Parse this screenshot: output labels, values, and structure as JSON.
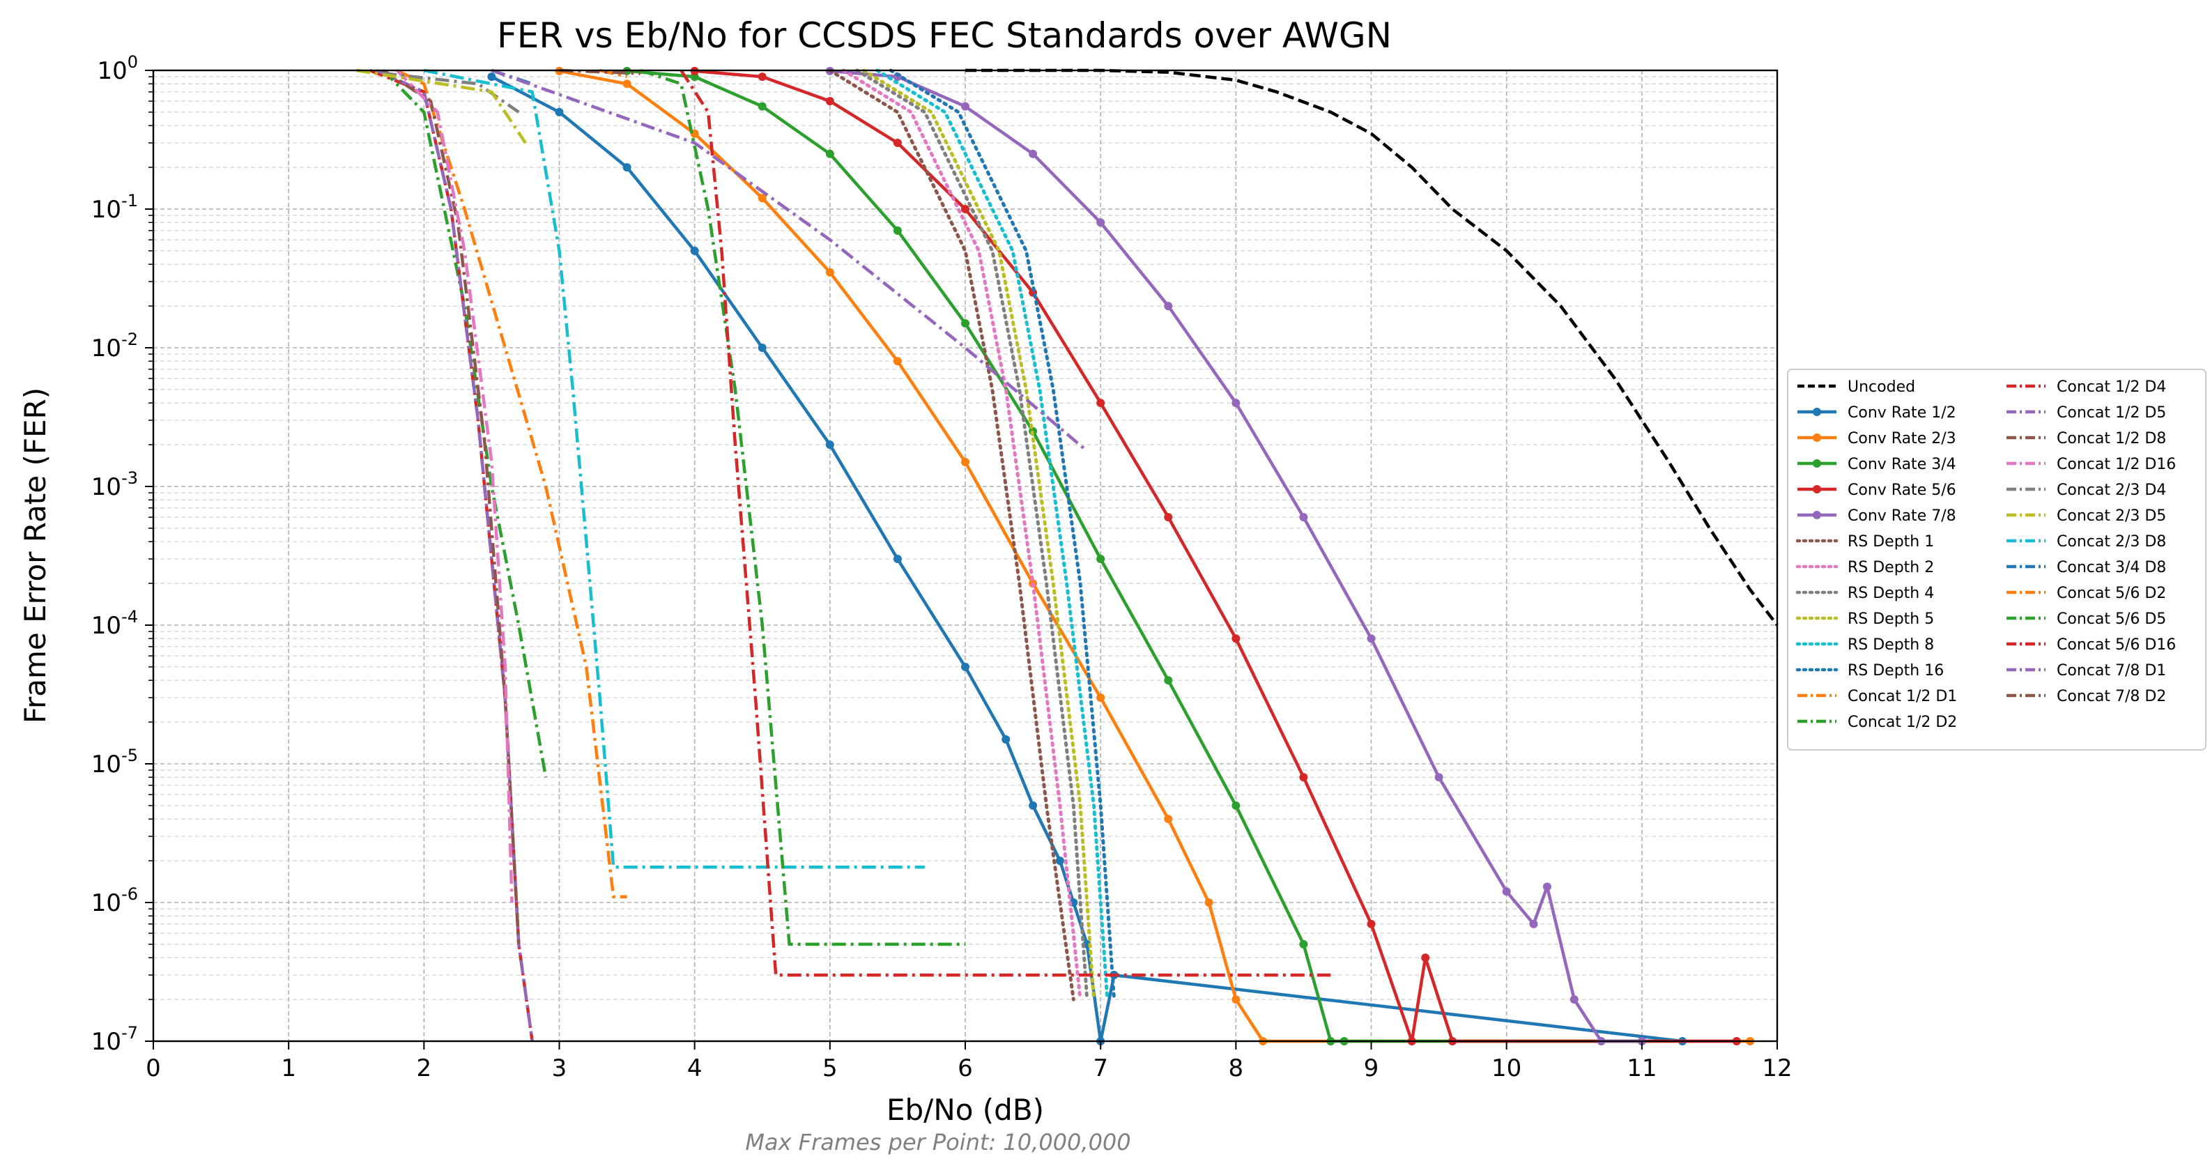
{
  "chart_data": {
    "type": "line",
    "title": "FER vs Eb/No for CCSDS FEC Standards over AWGN",
    "xlabel": "Eb/No (dB)",
    "ylabel": "Frame Error Rate (FER)",
    "footnote": "Max Frames per Point: 10,000,000",
    "xlim": [
      0,
      12
    ],
    "ylim": [
      1e-07,
      1
    ],
    "yscale": "log",
    "grid": true,
    "legend_position": "right-outside",
    "x_ticks": [
      "0",
      "1",
      "2",
      "3",
      "4",
      "5",
      "6",
      "7",
      "8",
      "9",
      "10",
      "11",
      "12"
    ],
    "y_ticks": [
      {
        "base": "10",
        "exp": "-7",
        "value": 1e-07
      },
      {
        "base": "10",
        "exp": "-6",
        "value": 1e-06
      },
      {
        "base": "10",
        "exp": "-5",
        "value": 1e-05
      },
      {
        "base": "10",
        "exp": "-4",
        "value": 0.0001
      },
      {
        "base": "10",
        "exp": "-3",
        "value": 0.001
      },
      {
        "base": "10",
        "exp": "-2",
        "value": 0.01
      },
      {
        "base": "10",
        "exp": "-1",
        "value": 0.1
      },
      {
        "base": "10",
        "exp": "0",
        "value": 1
      }
    ],
    "series": [
      {
        "name": "Uncoded",
        "color": "#000000",
        "style": "dashed",
        "marker": false,
        "x": [
          6.0,
          7.0,
          7.5,
          8.0,
          8.3,
          8.7,
          9.0,
          9.3,
          9.6,
          10.0,
          10.4,
          10.8,
          11.2,
          11.5,
          11.8,
          12.0
        ],
        "y": [
          1,
          1,
          0.97,
          0.85,
          0.7,
          0.5,
          0.35,
          0.2,
          0.1,
          0.05,
          0.02,
          0.006,
          0.0015,
          0.0005,
          0.00018,
          0.0001
        ]
      },
      {
        "name": "Conv Rate 1/2",
        "color": "#1f77b4",
        "style": "solid",
        "marker": true,
        "x": [
          2.5,
          3.0,
          3.5,
          4.0,
          4.5,
          5.0,
          5.5,
          6.0,
          6.3,
          6.5,
          6.7,
          6.8,
          6.9,
          7.0,
          7.1,
          11.3
        ],
        "y": [
          0.9,
          0.5,
          0.2,
          0.05,
          0.01,
          0.002,
          0.0003,
          5e-05,
          1.5e-05,
          5e-06,
          2e-06,
          1e-06,
          5e-07,
          1e-07,
          3e-07,
          1e-07
        ]
      },
      {
        "name": "Conv Rate 2/3",
        "color": "#ff7f0e",
        "style": "solid",
        "marker": true,
        "x": [
          3.0,
          3.5,
          4.0,
          4.5,
          5.0,
          5.5,
          6.0,
          6.5,
          7.0,
          7.5,
          7.8,
          8.0,
          8.2,
          11.8
        ],
        "y": [
          0.99,
          0.8,
          0.35,
          0.12,
          0.035,
          0.008,
          0.0015,
          0.0002,
          3e-05,
          4e-06,
          1e-06,
          2e-07,
          1e-07,
          1e-07
        ]
      },
      {
        "name": "Conv Rate 3/4",
        "color": "#2ca02c",
        "style": "solid",
        "marker": true,
        "x": [
          3.5,
          4.0,
          4.5,
          5.0,
          5.5,
          6.0,
          6.5,
          7.0,
          7.5,
          8.0,
          8.5,
          8.7,
          8.8,
          11.0
        ],
        "y": [
          0.99,
          0.9,
          0.55,
          0.25,
          0.07,
          0.015,
          0.0025,
          0.0003,
          4e-05,
          5e-06,
          5e-07,
          1e-07,
          1e-07,
          1e-07
        ]
      },
      {
        "name": "Conv Rate 5/6",
        "color": "#d62728",
        "style": "solid",
        "marker": true,
        "x": [
          4.0,
          4.5,
          5.0,
          5.5,
          6.0,
          6.5,
          7.0,
          7.5,
          8.0,
          8.5,
          9.0,
          9.3,
          9.4,
          9.6,
          11.7
        ],
        "y": [
          0.99,
          0.9,
          0.6,
          0.3,
          0.1,
          0.025,
          0.004,
          0.0006,
          8e-05,
          8e-06,
          7e-07,
          1e-07,
          4e-07,
          1e-07,
          1e-07
        ]
      },
      {
        "name": "Conv Rate 7/8",
        "color": "#9467bd",
        "style": "solid",
        "marker": true,
        "x": [
          5.0,
          5.5,
          6.0,
          6.5,
          7.0,
          7.5,
          8.0,
          8.5,
          9.0,
          9.5,
          10.0,
          10.2,
          10.3,
          10.5,
          10.7,
          11.0
        ],
        "y": [
          0.99,
          0.9,
          0.55,
          0.25,
          0.08,
          0.02,
          0.004,
          0.0006,
          8e-05,
          8e-06,
          1.2e-06,
          7e-07,
          1.3e-06,
          2e-07,
          1e-07,
          1e-07
        ]
      },
      {
        "name": "RS Depth 1",
        "color": "#8c564b",
        "style": "dotted",
        "marker": false,
        "x": [
          5.0,
          5.5,
          6.0,
          6.2,
          6.4,
          6.6,
          6.8
        ],
        "y": [
          1,
          0.5,
          0.05,
          0.005,
          0.0002,
          5e-06,
          2e-07
        ]
      },
      {
        "name": "RS Depth 2",
        "color": "#e377c2",
        "style": "dotted",
        "marker": false,
        "x": [
          5.1,
          5.6,
          6.1,
          6.3,
          6.5,
          6.7,
          6.85
        ],
        "y": [
          1,
          0.5,
          0.05,
          0.005,
          0.0002,
          5e-06,
          2e-07
        ]
      },
      {
        "name": "RS Depth 4",
        "color": "#7f7f7f",
        "style": "dotted",
        "marker": false,
        "x": [
          5.2,
          5.7,
          6.2,
          6.4,
          6.6,
          6.8,
          6.9
        ],
        "y": [
          1,
          0.5,
          0.05,
          0.005,
          0.0002,
          5e-06,
          2e-07
        ]
      },
      {
        "name": "RS Depth 5",
        "color": "#bcbd22",
        "style": "dotted",
        "marker": false,
        "x": [
          5.25,
          5.75,
          6.25,
          6.45,
          6.65,
          6.85,
          6.95
        ],
        "y": [
          1,
          0.5,
          0.05,
          0.005,
          0.0002,
          5e-06,
          2e-07
        ]
      },
      {
        "name": "RS Depth 8",
        "color": "#17becf",
        "style": "dotted",
        "marker": false,
        "x": [
          5.35,
          5.85,
          6.35,
          6.55,
          6.75,
          6.95,
          7.05
        ],
        "y": [
          1,
          0.5,
          0.05,
          0.005,
          0.0002,
          5e-06,
          2e-07
        ]
      },
      {
        "name": "RS Depth 16",
        "color": "#1f77b4",
        "style": "dotted",
        "marker": false,
        "x": [
          5.45,
          5.95,
          6.45,
          6.65,
          6.85,
          7.0,
          7.1
        ],
        "y": [
          1,
          0.5,
          0.05,
          0.005,
          0.0002,
          5e-06,
          2e-07
        ]
      },
      {
        "name": "Concat 1/2 D1",
        "color": "#ff7f0e",
        "style": "dashdot",
        "marker": false,
        "x": [
          1.8,
          2.0,
          2.3,
          2.6,
          2.9,
          3.2,
          3.4,
          3.5
        ],
        "y": [
          1,
          0.8,
          0.1,
          0.01,
          0.001,
          5e-05,
          1.1e-06,
          1.1e-06
        ]
      },
      {
        "name": "Concat 1/2 D2",
        "color": "#2ca02c",
        "style": "dashdot",
        "marker": false,
        "x": [
          1.7,
          2.0,
          2.3,
          2.5,
          2.7,
          2.9
        ],
        "y": [
          1,
          0.5,
          0.02,
          0.001,
          0.0001,
          8e-06
        ]
      },
      {
        "name": "Concat 1/2 D4",
        "color": "#d62728",
        "style": "dashdot",
        "marker": false,
        "x": [
          1.6,
          2.0,
          2.2,
          2.4,
          2.6,
          2.7,
          2.8
        ],
        "y": [
          1,
          0.7,
          0.1,
          0.003,
          3e-05,
          5e-07,
          1e-07
        ]
      },
      {
        "name": "Concat 1/2 D5",
        "color": "#9467bd",
        "style": "dashdot",
        "marker": false,
        "x": [
          1.65,
          2.0,
          2.2,
          2.4,
          2.6,
          2.7,
          2.8
        ],
        "y": [
          1,
          0.7,
          0.1,
          0.003,
          3e-05,
          5e-07,
          1e-07
        ]
      },
      {
        "name": "Concat 1/2 D8",
        "color": "#8c564b",
        "style": "dashdot",
        "marker": false,
        "x": [
          1.7,
          2.05,
          2.25,
          2.45,
          2.6,
          2.7
        ],
        "y": [
          1,
          0.6,
          0.08,
          0.002,
          3e-05,
          5e-07
        ]
      },
      {
        "name": "Concat 1/2 D16",
        "color": "#e377c2",
        "style": "dashdot",
        "marker": false,
        "x": [
          1.8,
          2.1,
          2.3,
          2.5,
          2.6,
          2.65
        ],
        "y": [
          1,
          0.5,
          0.05,
          0.0015,
          5e-05,
          1e-06
        ]
      },
      {
        "name": "Concat 2/3 D4",
        "color": "#7f7f7f",
        "style": "dashdot",
        "marker": false,
        "x": [
          1.5,
          2.4,
          2.7
        ],
        "y": [
          1,
          0.8,
          0.5
        ]
      },
      {
        "name": "Concat 2/3 D5",
        "color": "#bcbd22",
        "style": "dashdot",
        "marker": false,
        "x": [
          1.5,
          2.5,
          2.75
        ],
        "y": [
          1,
          0.7,
          0.3
        ]
      },
      {
        "name": "Concat 2/3 D8",
        "color": "#17becf",
        "style": "dashdot",
        "marker": false,
        "x": [
          2.0,
          2.8,
          3.0,
          3.1,
          3.2,
          3.3,
          3.4,
          5.7
        ],
        "y": [
          1,
          0.7,
          0.05,
          0.005,
          0.0004,
          3e-05,
          1.8e-06,
          1.8e-06
        ]
      },
      {
        "name": "Concat 3/4 D8",
        "color": "#1f77b4",
        "style": "dashdot",
        "marker": false,
        "x": [
          2.5,
          2.8
        ],
        "y": [
          1,
          0.8
        ]
      },
      {
        "name": "Concat 5/6 D2",
        "color": "#ff7f0e",
        "style": "dashdot",
        "marker": false,
        "x": [
          3.3,
          3.5
        ],
        "y": [
          1,
          0.9
        ]
      },
      {
        "name": "Concat 5/6 D5",
        "color": "#2ca02c",
        "style": "dashdot",
        "marker": false,
        "x": [
          3.6,
          3.9,
          4.1,
          4.3,
          4.5,
          4.7,
          6.0
        ],
        "y": [
          1,
          0.8,
          0.1,
          0.005,
          0.0001,
          5e-07,
          5e-07
        ]
      },
      {
        "name": "Concat 5/6 D16",
        "color": "#d62728",
        "style": "dashdot",
        "marker": false,
        "x": [
          3.9,
          4.1,
          4.2,
          4.3,
          4.45,
          4.6,
          8.7
        ],
        "y": [
          1,
          0.5,
          0.05,
          0.002,
          3e-05,
          3e-07,
          3e-07
        ]
      },
      {
        "name": "Concat 7/8 D1",
        "color": "#9467bd",
        "style": "dashdot",
        "marker": false,
        "x": [
          2.5,
          4.0,
          5.0,
          6.0,
          6.9
        ],
        "y": [
          1,
          0.3,
          0.06,
          0.01,
          0.0018
        ]
      },
      {
        "name": "Concat 7/8 D2",
        "color": "#8c564b",
        "style": "dashdot",
        "marker": false,
        "x": [
          3.0,
          3.6
        ],
        "y": [
          1,
          0.95
        ]
      }
    ]
  }
}
